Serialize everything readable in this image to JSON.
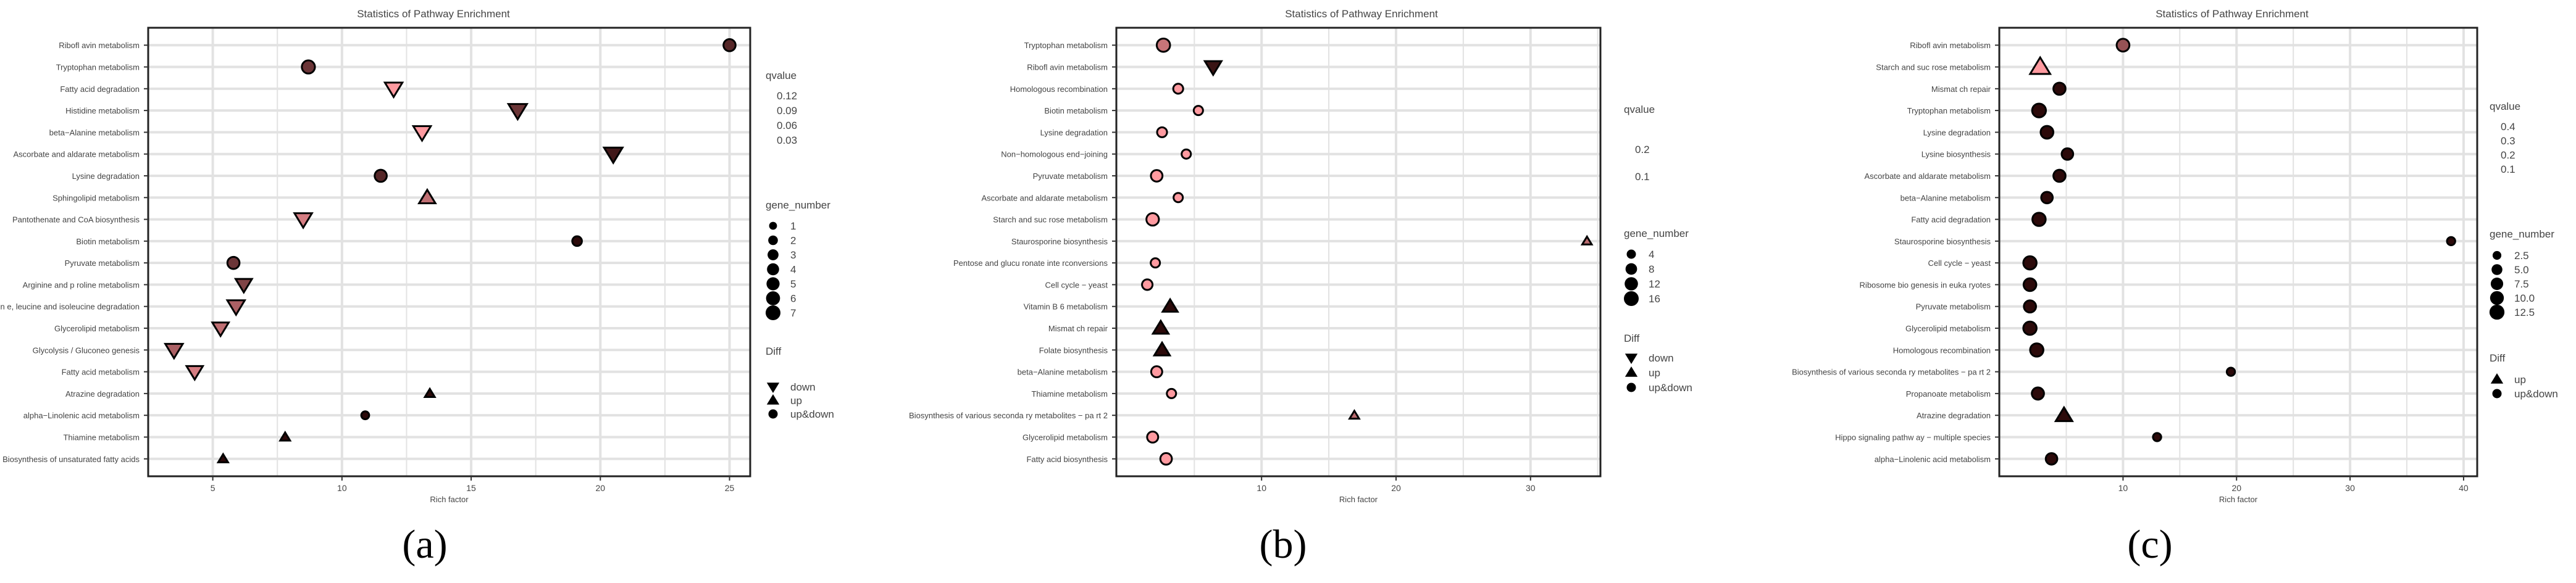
{
  "figure": {
    "captions": [
      "(a)",
      "(b)",
      "(c)"
    ]
  },
  "chart_data": [
    {
      "type": "scatter",
      "title": "Statistics of  Pathway Enrichment",
      "xlabel": "Rich factor",
      "ylabel": "",
      "xlim": [
        2.5,
        25.8
      ],
      "xticks": [
        5,
        10,
        15,
        20,
        25
      ],
      "grid": true,
      "legend_position": "right",
      "categories": [
        "Riboflavin metabolism",
        "Tryptophan metabolism",
        "Fatty acid degradation",
        "Histidine metabolism",
        "beta-Alanine metabolism",
        "Ascorbate and aldarate metabolism",
        "Lysine degradation",
        "Sphingolipid metabolism",
        "Pantothenate and CoA biosynthesis",
        "Biotin metabolism",
        "Pyruvate metabolism",
        "Arginine and proline metabolism",
        "Valine, leucine and isoleucine degradation",
        "Glycerolipid metabolism",
        "Glycolysis / Gluconeogenesis",
        "Fatty acid metabolism",
        "Atrazine degradation",
        "alpha-Linolenic acid metabolism",
        "Thiamine metabolism",
        "Biosynthesis of unsaturated fatty acids"
      ],
      "category_labels": [
        "Ribofl avin metabolism",
        "Tryptophan metabolism",
        "Fatty acid degradation",
        "Histidine metabolism",
        "beta−Alanine metabolism",
        "Ascorbate and aldarate metabolism",
        "Lysine degradation",
        "Sphingolipid metabolism",
        "Pantothenate and CoA biosynthesis",
        "Biotin metabolism",
        "Pyruvate metabolism",
        "Arginine and p roline metabolism",
        "Valin e, leucine and isoleucine degradation",
        "Glycerolipid metabolism",
        "Glycolysis / Gluconeo genesis",
        "Fatty acid metabolism",
        "Atrazine degradation",
        "alpha−Linolenic acid metabolism",
        "Thiamine metabolism",
        "Biosynthesis of unsaturated fatty acids"
      ],
      "x": [
        25.0,
        8.7,
        12.0,
        16.8,
        13.1,
        20.5,
        11.5,
        13.3,
        8.5,
        19.1,
        5.8,
        6.2,
        5.9,
        5.3,
        3.5,
        4.3,
        13.4,
        10.9,
        7.8,
        5.4
      ],
      "gene_number": [
        4,
        5,
        6,
        7,
        6,
        7,
        4,
        5,
        6,
        2,
        4,
        5,
        6,
        5,
        6,
        5,
        1,
        1,
        1,
        1
      ],
      "qvalue": [
        0.04,
        0.05,
        0.12,
        0.05,
        0.12,
        0.03,
        0.04,
        0.09,
        0.1,
        0.02,
        0.05,
        0.06,
        0.08,
        0.09,
        0.08,
        0.1,
        0.02,
        0.02,
        0.02,
        0.02
      ],
      "diff": [
        "up&down",
        "up&down",
        "down",
        "down",
        "down",
        "down",
        "up&down",
        "up",
        "down",
        "up&down",
        "up&down",
        "down",
        "down",
        "down",
        "down",
        "down",
        "up",
        "up&down",
        "up",
        "up"
      ],
      "legend": {
        "qvalue_title": "qvalue",
        "qvalue_labels": [
          "0.12",
          "0.09",
          "0.06",
          "0.03"
        ],
        "size_title": "gene_number",
        "size_labels": [
          "1",
          "2",
          "3",
          "4",
          "5",
          "6",
          "7"
        ],
        "size_values": [
          1,
          2,
          3,
          4,
          5,
          6,
          7
        ],
        "diff_title": "Diff",
        "diff_labels": [
          "down",
          "up",
          "up&down"
        ]
      },
      "colors": {
        "low_q": "#2c0a0a",
        "high_q": "#ff9aa0"
      }
    },
    {
      "type": "scatter",
      "title": "Statistics of  Pathway Enrichment",
      "xlabel": "Rich factor",
      "ylabel": "",
      "xlim": [
        -0.8,
        35.2
      ],
      "xticks": [
        10,
        20,
        30
      ],
      "grid": true,
      "legend_position": "right",
      "categories": [
        "Tryptophan metabolism",
        "Riboflavin metabolism",
        "Homologous recombination",
        "Biotin metabolism",
        "Lysine degradation",
        "Non-homologous end-joining",
        "Pyruvate metabolism",
        "Ascorbate and aldarate metabolism",
        "Starch and sucrose metabolism",
        "Staurosporine biosynthesis",
        "Pentose and glucuronate interconversions",
        "Cell cycle - yeast",
        "Vitamin B6 metabolism",
        "Mismatch repair",
        "Folate biosynthesis",
        "beta-Alanine metabolism",
        "Thiamine metabolism",
        "Biosynthesis of various secondary metabolites - part 2",
        "Glycerolipid metabolism",
        "Fatty acid biosynthesis"
      ],
      "category_labels": [
        "Tryptophan metabolism",
        "Ribofl avin metabolism",
        "Homologous recombination",
        "Biotin metabolism",
        "Lysine degradation",
        "Non−homologous end−joining",
        "Pyruvate metabolism",
        "Ascorbate and aldarate metabolism",
        "Starch and suc rose metabolism",
        "Staurosporine biosynthesis",
        "Pentose and glucu ronate inte rconversions",
        "Cell cycle − yeast",
        "Vitamin B 6 metabolism",
        "Mismat ch repair",
        "Folate biosynthesis",
        "beta−Alanine metabolism",
        "Thiamine metabolism",
        "Biosynthesis of    various seconda ry metabolites − pa rt 2",
        "Glycerolipid metabolism",
        "Fatty acid biosynthesis"
      ],
      "x": [
        2.7,
        6.4,
        3.8,
        5.3,
        2.6,
        4.4,
        2.2,
        3.8,
        1.9,
        34.2,
        2.1,
        1.5,
        3.2,
        2.5,
        2.6,
        2.2,
        3.3,
        16.9,
        1.9,
        2.9
      ],
      "gene_number": [
        12,
        12,
        5,
        4,
        5,
        4,
        8,
        4,
        10,
        2,
        4,
        6,
        9,
        10,
        10,
        7,
        4,
        2,
        7,
        8
      ],
      "qvalue": [
        0.16,
        0.06,
        0.2,
        0.2,
        0.2,
        0.2,
        0.2,
        0.2,
        0.2,
        0.15,
        0.2,
        0.2,
        0.05,
        0.05,
        0.05,
        0.2,
        0.2,
        0.15,
        0.2,
        0.2
      ],
      "diff": [
        "up&down",
        "down",
        "up&down",
        "up&down",
        "up&down",
        "up&down",
        "up&down",
        "up&down",
        "up&down",
        "up",
        "up&down",
        "up&down",
        "up",
        "up",
        "up",
        "up&down",
        "up&down",
        "up",
        "up&down",
        "up&down"
      ],
      "legend": {
        "qvalue_title": "qvalue",
        "qvalue_labels": [
          "0.2",
          "0.1"
        ],
        "size_title": "gene_number",
        "size_labels": [
          "4",
          "8",
          "12",
          "16"
        ],
        "size_values": [
          4,
          8,
          12,
          16
        ],
        "diff_title": "Diff",
        "diff_labels": [
          "down",
          "up",
          "up&down"
        ]
      },
      "colors": {
        "low_q": "#2c0a0a",
        "high_q": "#ff9aa0"
      }
    },
    {
      "type": "scatter",
      "title": "Statistics of  Pathway Enrichment",
      "xlabel": "Rich factor",
      "ylabel": "",
      "xlim": [
        -0.9,
        41.2
      ],
      "xticks": [
        10,
        20,
        30,
        40
      ],
      "grid": true,
      "legend_position": "right",
      "categories": [
        "Riboflavin metabolism",
        "Starch and sucrose metabolism",
        "Mismatch repair",
        "Tryptophan metabolism",
        "Lysine degradation",
        "Lysine biosynthesis",
        "Ascorbate and aldarate metabolism",
        "beta-Alanine metabolism",
        "Fatty acid degradation",
        "Staurosporine biosynthesis",
        "Cell cycle - yeast",
        "Ribosome biogenesis in eukaryotes",
        "Pyruvate metabolism",
        "Glycerolipid metabolism",
        "Homologous recombination",
        "Biosynthesis of various secondary metabolites - part 2",
        "Propanoate metabolism",
        "Atrazine degradation",
        "Hippo signaling pathway - multiple species",
        "alpha-Linolenic acid metabolism"
      ],
      "category_labels": [
        "Ribofl avin metabolism",
        "Starch and suc rose metabolism",
        "Mismat ch repair",
        "Tryptophan metabolism",
        "Lysine degradation",
        "Lysine biosynthesis",
        "Ascorbate and aldarate metabolism",
        "beta−Alanine metabolism",
        "Fatty acid degradation",
        "Staurosporine biosynthesis",
        "Cell cycle − yeast",
        "Ribosome bio genesis in euka ryotes",
        "Pyruvate metabolism",
        "Glycerolipid metabolism",
        "Homologous recombination",
        "Biosynthesis of    various seconda ry metabolites − pa rt 2",
        "Propanoate metabolism",
        "Atrazine degradation",
        "Hippo signaling pathw ay − multiple species",
        "alpha−Linolenic acid metabolism"
      ],
      "x": [
        10.0,
        2.7,
        4.4,
        2.6,
        3.3,
        5.1,
        4.4,
        3.3,
        2.6,
        38.9,
        1.8,
        1.8,
        1.8,
        1.8,
        2.4,
        19.5,
        2.5,
        4.8,
        13.0,
        3.7
      ],
      "gene_number": [
        8,
        15,
        7,
        10,
        8,
        6,
        7,
        6,
        9,
        2,
        9,
        8,
        7,
        9,
        9,
        2,
        7,
        9,
        2,
        6
      ],
      "qvalue": [
        0.2,
        0.35,
        0.05,
        0.05,
        0.05,
        0.05,
        0.05,
        0.05,
        0.05,
        0.05,
        0.05,
        0.05,
        0.05,
        0.05,
        0.05,
        0.05,
        0.05,
        0.05,
        0.05,
        0.05
      ],
      "diff": [
        "up&down",
        "up",
        "up&down",
        "up&down",
        "up&down",
        "up&down",
        "up&down",
        "up&down",
        "up&down",
        "up&down",
        "up&down",
        "up&down",
        "up&down",
        "up&down",
        "up&down",
        "up&down",
        "up&down",
        "up",
        "up&down",
        "up&down"
      ],
      "legend": {
        "qvalue_title": "qvalue",
        "qvalue_labels": [
          "0.4",
          "0.3",
          "0.2",
          "0.1"
        ],
        "size_title": "gene_number",
        "size_labels": [
          "2.5",
          "5.0",
          "7.5",
          "10.0",
          "12.5"
        ],
        "size_values": [
          2.5,
          5,
          7.5,
          10,
          12.5
        ],
        "diff_title": "Diff",
        "diff_labels": [
          "up",
          "up&down"
        ]
      },
      "colors": {
        "low_q": "#2c0a0a",
        "high_q": "#ff9aa0"
      }
    }
  ]
}
